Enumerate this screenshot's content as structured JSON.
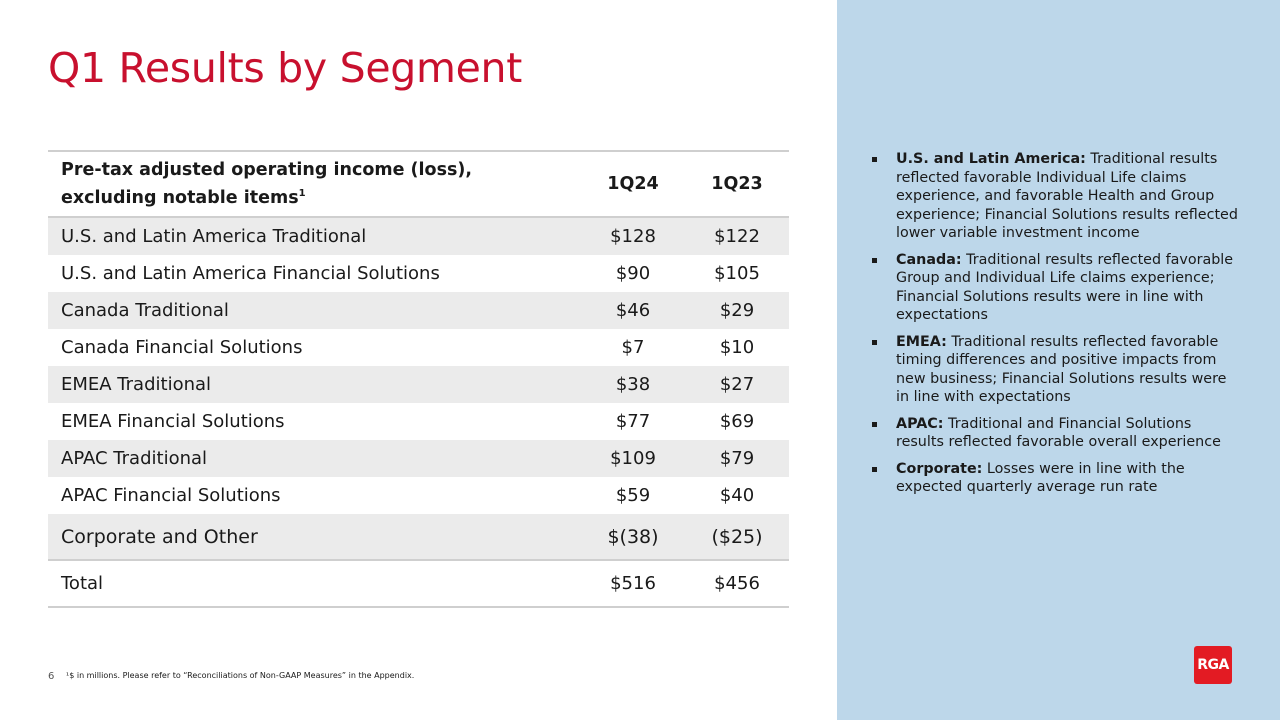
{
  "slide": {
    "title": "Q1 Results by Segment",
    "page_number": "6",
    "footnote": "¹$ in millions. Please refer to “Reconciliations  of Non-GAAP Measures” in the Appendix.",
    "logo_text": "RGA"
  },
  "table": {
    "header": {
      "label_line1": "Pre-tax adjusted operating income (loss),",
      "label_line2": "excluding notable items",
      "superscript": "1",
      "col1": "1Q24",
      "col2": "1Q23"
    },
    "rows": [
      {
        "label": "U.S. and Latin America Traditional",
        "q24": "$128",
        "q23": "$122"
      },
      {
        "label": "U.S. and Latin America Financial Solutions",
        "q24": "$90",
        "q23": "$105"
      },
      {
        "label": "Canada Traditional",
        "q24": "$46",
        "q23": "$29"
      },
      {
        "label": "Canada Financial Solutions",
        "q24": "$7",
        "q23": "$10"
      },
      {
        "label": "EMEA Traditional",
        "q24": "$38",
        "q23": "$27"
      },
      {
        "label": "EMEA Financial Solutions",
        "q24": "$77",
        "q23": "$69"
      },
      {
        "label": "APAC Traditional",
        "q24": "$109",
        "q23": "$79"
      },
      {
        "label": "APAC Financial Solutions",
        "q24": "$59",
        "q23": "$40"
      },
      {
        "label": "Corporate and Other",
        "q24": "$(38)",
        "q23": "($25)"
      },
      {
        "label": "Total",
        "q24": "$516",
        "q23": "$456"
      }
    ]
  },
  "commentary": [
    {
      "bold": "U.S. and Latin America:",
      "text": " Traditional results reflected favorable Individual Life claims experience, and favorable Health and Group experience; Financial Solutions results reflected lower variable investment income"
    },
    {
      "bold": "Canada:",
      "text": " Traditional results reflected favorable Group and Individual Life claims experience; Financial Solutions results were in line with expectations"
    },
    {
      "bold": "EMEA:",
      "text": " Traditional results reflected favorable timing differences and positive impacts from new business; Financial Solutions results were in line with expectations"
    },
    {
      "bold": "APAC:",
      "text": " Traditional and Financial Solutions results reflected favorable overall experience"
    },
    {
      "bold": "Corporate:",
      "text": " Losses were in line with the expected quarterly average run rate"
    }
  ],
  "colors": {
    "title_red": "#c8102e",
    "panel_blue": "#bdd7ea",
    "row_shade": "#ebebeb",
    "logo_red": "#e31b23"
  }
}
